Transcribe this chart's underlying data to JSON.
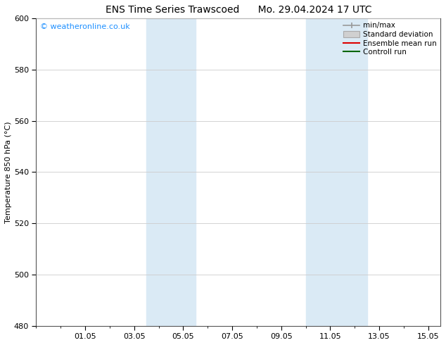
{
  "title_left": "ENS Time Series Trawscoed",
  "title_right": "Mo. 29.04.2024 17 UTC",
  "ylabel": "Temperature 850 hPa (°C)",
  "ylim": [
    480,
    600
  ],
  "yticks": [
    480,
    500,
    520,
    540,
    560,
    580,
    600
  ],
  "xtick_labels": [
    "01.05",
    "03.05",
    "05.05",
    "07.05",
    "09.05",
    "11.05",
    "13.05",
    "15.05"
  ],
  "xtick_positions": [
    2,
    4,
    6,
    8,
    10,
    12,
    14,
    16
  ],
  "xlim": [
    0,
    16.5
  ],
  "shaded_bands": [
    {
      "x_start": 4.5,
      "x_end": 6.5
    },
    {
      "x_start": 11.0,
      "x_end": 13.5
    }
  ],
  "shaded_color": "#daeaf5",
  "background_color": "#ffffff",
  "legend_labels": [
    "min/max",
    "Standard deviation",
    "Ensemble mean run",
    "Controll run"
  ],
  "watermark_text": "© weatheronline.co.uk",
  "watermark_color": "#1e90ff",
  "title_fontsize": 10,
  "ylabel_fontsize": 8,
  "tick_fontsize": 8,
  "legend_fontsize": 7.5
}
